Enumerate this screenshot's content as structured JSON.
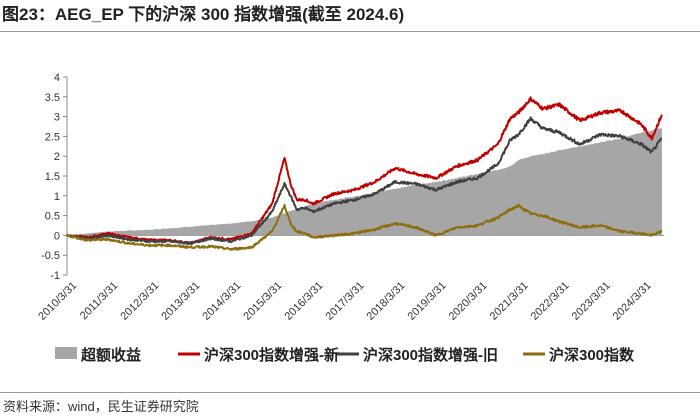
{
  "header": {
    "title": "图23：AEG_EP 下的沪深 300 指数增强(截至 2024.6)"
  },
  "footer": {
    "source": "资料来源：wind，民生证券研究院"
  },
  "colors": {
    "excess": "#a6a6a6",
    "enhanced_new": "#c00000",
    "enhanced_old": "#404040",
    "index": "#8c6d0f"
  },
  "chart_data": {
    "type": "line",
    "title": "AEG_EP 下的沪深 300 指数增强(截至 2024.6)",
    "xlabel": "",
    "ylabel": "",
    "ylim": [
      -1,
      4
    ],
    "yticks": [
      "-1",
      "-0.5",
      "0",
      "0.5",
      "1",
      "1.5",
      "2",
      "2.5",
      "3",
      "3.5",
      "4"
    ],
    "xticks": [
      "2010/3/31",
      "2011/3/31",
      "2012/3/31",
      "2013/3/31",
      "2014/3/31",
      "2015/3/31",
      "2016/3/31",
      "2017/3/31",
      "2018/3/31",
      "2019/3/31",
      "2020/3/31",
      "2021/3/31",
      "2022/3/31",
      "2023/3/31",
      "2024/3/31"
    ],
    "x": [
      2010.0,
      2010.5,
      2011.0,
      2011.5,
      2012.0,
      2012.5,
      2013.0,
      2013.5,
      2014.0,
      2014.5,
      2015.0,
      2015.3,
      2015.45,
      2015.6,
      2015.8,
      2016.0,
      2016.5,
      2017.0,
      2017.5,
      2018.0,
      2018.5,
      2019.0,
      2019.5,
      2020.0,
      2020.5,
      2020.8,
      2021.0,
      2021.3,
      2021.6,
      2022.0,
      2022.5,
      2023.0,
      2023.5,
      2024.0,
      2024.25,
      2024.5
    ],
    "series": [
      {
        "name": "超额收益",
        "kind": "area",
        "values": [
          0.0,
          0.05,
          0.1,
          0.12,
          0.14,
          0.18,
          0.22,
          0.26,
          0.3,
          0.36,
          0.45,
          0.56,
          0.62,
          0.66,
          0.72,
          0.82,
          0.9,
          0.98,
          1.08,
          1.18,
          1.28,
          1.35,
          1.45,
          1.55,
          1.65,
          1.75,
          1.9,
          2.0,
          2.05,
          2.15,
          2.25,
          2.35,
          2.45,
          2.6,
          2.65,
          2.72
        ]
      },
      {
        "name": "沪深300指数增强-新",
        "kind": "line",
        "values": [
          0.0,
          -0.05,
          0.05,
          -0.05,
          -0.12,
          -0.12,
          -0.2,
          -0.05,
          -0.1,
          0.05,
          0.8,
          1.95,
          1.3,
          0.9,
          0.9,
          0.8,
          1.05,
          1.15,
          1.35,
          1.7,
          1.55,
          1.45,
          1.75,
          1.9,
          2.3,
          2.95,
          3.1,
          3.45,
          3.2,
          3.3,
          2.9,
          3.1,
          3.15,
          2.8,
          2.45,
          3.05
        ]
      },
      {
        "name": "沪深300指数增强-旧",
        "kind": "line",
        "values": [
          0.0,
          -0.08,
          0.0,
          -0.1,
          -0.15,
          -0.15,
          -0.2,
          -0.08,
          -0.15,
          0.0,
          0.6,
          1.3,
          1.0,
          0.65,
          0.7,
          0.6,
          0.8,
          0.9,
          1.05,
          1.35,
          1.3,
          1.15,
          1.35,
          1.45,
          1.8,
          2.4,
          2.55,
          2.95,
          2.7,
          2.6,
          2.3,
          2.55,
          2.5,
          2.3,
          2.1,
          2.45
        ]
      },
      {
        "name": "沪深300指数",
        "kind": "line",
        "values": [
          0.0,
          -0.12,
          -0.1,
          -0.2,
          -0.25,
          -0.25,
          -0.3,
          -0.28,
          -0.35,
          -0.3,
          0.1,
          0.75,
          0.3,
          0.1,
          0.05,
          -0.05,
          0.0,
          0.05,
          0.15,
          0.3,
          0.2,
          0.0,
          0.2,
          0.25,
          0.45,
          0.65,
          0.75,
          0.55,
          0.5,
          0.35,
          0.2,
          0.25,
          0.1,
          0.05,
          0.0,
          0.1
        ]
      }
    ],
    "legend_position": "bottom"
  }
}
